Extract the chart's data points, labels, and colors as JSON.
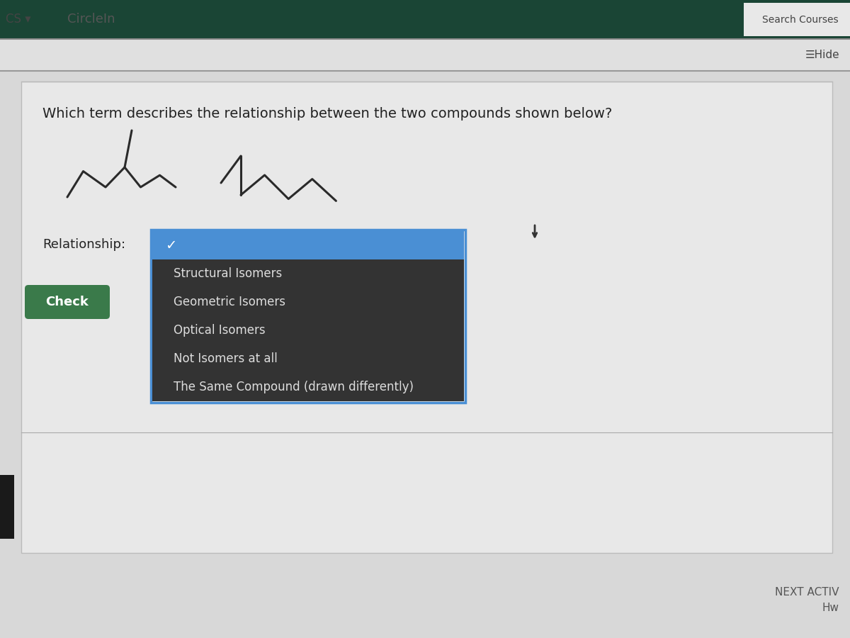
{
  "bg_color": "#c8c8c8",
  "header_bg": "#1a4535",
  "nav_text": "CS ▾",
  "nav_text2": "CircleIn",
  "search_text": "Search Courses",
  "hide_text": "☰Hide",
  "question_text": "Which term describes the relationship between the two compounds shown below?",
  "relationship_label": "Relationship:",
  "check_button_text": "Check",
  "check_button_color": "#3a7a4a",
  "check_button_text_color": "#ffffff",
  "next_text": "NEXT ACTIV",
  "hw_text": "Hw",
  "dropdown_bg": "#333333",
  "dropdown_selected_bg": "#4a8fd4",
  "dropdown_border": "#4a8fd4",
  "dropdown_items": [
    {
      "text": "✓",
      "selected": true
    },
    {
      "text": "Structural Isomers",
      "selected": false
    },
    {
      "text": "Geometric Isomers",
      "selected": false
    },
    {
      "text": "Optical Isomers",
      "selected": false
    },
    {
      "text": "Not Isomers at all",
      "selected": false
    },
    {
      "text": "The Same Compound (drawn differently)",
      "selected": false
    }
  ],
  "content_bg": "#d8d8d8",
  "white_box_color": "#e8e8e8",
  "line_color": "#555555"
}
